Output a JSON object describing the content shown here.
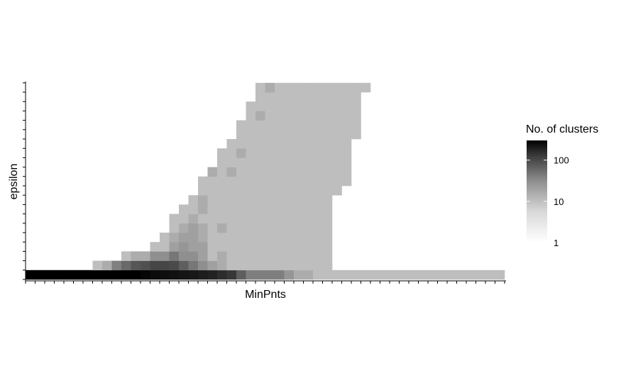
{
  "chart_data": {
    "type": "heatmap",
    "xlabel": "MinPnts",
    "ylabel": "epsilon",
    "x_count": 50,
    "y_count": 21,
    "legend": {
      "title": "No. of clusters",
      "scale": "log10",
      "ticks": [
        1,
        10,
        100
      ],
      "tick_labels": [
        "1",
        "10",
        "100"
      ],
      "range": [
        1,
        300
      ],
      "low_color": "#ffffff",
      "high_color": "#000000"
    },
    "rows": [
      {
        "y": 1,
        "values": [
          300,
          300,
          300,
          300,
          300,
          300,
          300,
          300,
          300,
          300,
          300,
          300,
          250,
          220,
          200,
          180,
          160,
          150,
          130,
          110,
          80,
          60,
          20,
          8,
          8,
          8,
          8,
          4,
          2,
          2,
          1,
          1,
          1,
          1,
          1,
          1,
          1,
          1,
          1,
          1,
          1,
          1,
          1,
          1,
          1,
          1,
          1,
          1,
          1,
          1
        ]
      },
      {
        "y": 2,
        "values": [
          0,
          0,
          0,
          0,
          0,
          0,
          0,
          1,
          2,
          8,
          15,
          25,
          30,
          40,
          40,
          35,
          20,
          10,
          5,
          3,
          2,
          1,
          1,
          1,
          1,
          1,
          1,
          1,
          1,
          1,
          1,
          1,
          0,
          0,
          0,
          0,
          0,
          0,
          0,
          0,
          0,
          0,
          0,
          0,
          0,
          0,
          0,
          0,
          0,
          0
        ]
      },
      {
        "y": 3,
        "values": [
          0,
          0,
          0,
          0,
          0,
          0,
          0,
          0,
          0,
          0,
          1,
          2,
          2,
          5,
          5,
          10,
          5,
          5,
          3,
          1,
          2,
          1,
          1,
          1,
          1,
          1,
          1,
          1,
          1,
          1,
          1,
          1,
          0,
          0,
          0,
          0,
          0,
          0,
          0,
          0,
          0,
          0,
          0,
          0,
          0,
          0,
          0,
          0,
          0,
          0
        ]
      },
      {
        "y": 4,
        "values": [
          0,
          0,
          0,
          0,
          0,
          0,
          0,
          0,
          0,
          0,
          0,
          0,
          0,
          1,
          1,
          3,
          4,
          3,
          3,
          1,
          1,
          1,
          1,
          1,
          1,
          1,
          1,
          1,
          1,
          1,
          1,
          1,
          0,
          0,
          0,
          0,
          0,
          0,
          0,
          0,
          0,
          0,
          0,
          0,
          0,
          0,
          0,
          0,
          0,
          0
        ]
      },
      {
        "y": 5,
        "values": [
          0,
          0,
          0,
          0,
          0,
          0,
          0,
          0,
          0,
          0,
          0,
          0,
          0,
          0,
          1,
          2,
          3,
          3,
          2,
          1,
          1,
          1,
          1,
          1,
          1,
          1,
          1,
          1,
          1,
          1,
          1,
          1,
          0,
          0,
          0,
          0,
          0,
          0,
          0,
          0,
          0,
          0,
          0,
          0,
          0,
          0,
          0,
          0,
          0,
          0
        ]
      },
      {
        "y": 6,
        "values": [
          0,
          0,
          0,
          0,
          0,
          0,
          0,
          0,
          0,
          0,
          0,
          0,
          0,
          0,
          0,
          1,
          2,
          3,
          2,
          1,
          2,
          1,
          1,
          1,
          1,
          1,
          1,
          1,
          1,
          1,
          1,
          1,
          0,
          0,
          0,
          0,
          0,
          0,
          0,
          0,
          0,
          0,
          0,
          0,
          0,
          0,
          0,
          0,
          0,
          0
        ]
      },
      {
        "y": 7,
        "values": [
          0,
          0,
          0,
          0,
          0,
          0,
          0,
          0,
          0,
          0,
          0,
          0,
          0,
          0,
          0,
          1,
          1,
          2,
          1,
          1,
          1,
          1,
          1,
          1,
          1,
          1,
          1,
          1,
          1,
          1,
          1,
          1,
          0,
          0,
          0,
          0,
          0,
          0,
          0,
          0,
          0,
          0,
          0,
          0,
          0,
          0,
          0,
          0,
          0,
          0
        ]
      },
      {
        "y": 8,
        "values": [
          0,
          0,
          0,
          0,
          0,
          0,
          0,
          0,
          0,
          0,
          0,
          0,
          0,
          0,
          0,
          0,
          1,
          1,
          2,
          1,
          1,
          1,
          1,
          1,
          1,
          1,
          1,
          1,
          1,
          1,
          1,
          1,
          0,
          0,
          0,
          0,
          0,
          0,
          0,
          0,
          0,
          0,
          0,
          0,
          0,
          0,
          0,
          0,
          0,
          0
        ]
      },
      {
        "y": 9,
        "values": [
          0,
          0,
          0,
          0,
          0,
          0,
          0,
          0,
          0,
          0,
          0,
          0,
          0,
          0,
          0,
          0,
          0,
          1,
          2,
          1,
          1,
          1,
          1,
          1,
          1,
          1,
          1,
          1,
          1,
          1,
          1,
          1,
          0,
          0,
          0,
          0,
          0,
          0,
          0,
          0,
          0,
          0,
          0,
          0,
          0,
          0,
          0,
          0,
          0,
          0
        ]
      },
      {
        "y": 10,
        "values": [
          0,
          0,
          0,
          0,
          0,
          0,
          0,
          0,
          0,
          0,
          0,
          0,
          0,
          0,
          0,
          0,
          0,
          0,
          1,
          1,
          1,
          1,
          1,
          1,
          1,
          1,
          1,
          1,
          1,
          1,
          1,
          1,
          1,
          0,
          0,
          0,
          0,
          0,
          0,
          0,
          0,
          0,
          0,
          0,
          0,
          0,
          0,
          0,
          0,
          0
        ]
      },
      {
        "y": 11,
        "values": [
          0,
          0,
          0,
          0,
          0,
          0,
          0,
          0,
          0,
          0,
          0,
          0,
          0,
          0,
          0,
          0,
          0,
          0,
          1,
          1,
          1,
          1,
          1,
          1,
          1,
          1,
          1,
          1,
          1,
          1,
          1,
          1,
          1,
          1,
          0,
          0,
          0,
          0,
          0,
          0,
          0,
          0,
          0,
          0,
          0,
          0,
          0,
          0,
          0,
          0
        ]
      },
      {
        "y": 12,
        "values": [
          0,
          0,
          0,
          0,
          0,
          0,
          0,
          0,
          0,
          0,
          0,
          0,
          0,
          0,
          0,
          0,
          0,
          0,
          0,
          2,
          1,
          2,
          1,
          1,
          1,
          1,
          1,
          1,
          1,
          1,
          1,
          1,
          1,
          1,
          0,
          0,
          0,
          0,
          0,
          0,
          0,
          0,
          0,
          0,
          0,
          0,
          0,
          0,
          0,
          0
        ]
      },
      {
        "y": 13,
        "values": [
          0,
          0,
          0,
          0,
          0,
          0,
          0,
          0,
          0,
          0,
          0,
          0,
          0,
          0,
          0,
          0,
          0,
          0,
          0,
          0,
          1,
          1,
          1,
          1,
          1,
          1,
          1,
          1,
          1,
          1,
          1,
          1,
          1,
          1,
          0,
          0,
          0,
          0,
          0,
          0,
          0,
          0,
          0,
          0,
          0,
          0,
          0,
          0,
          0,
          0
        ]
      },
      {
        "y": 14,
        "values": [
          0,
          0,
          0,
          0,
          0,
          0,
          0,
          0,
          0,
          0,
          0,
          0,
          0,
          0,
          0,
          0,
          0,
          0,
          0,
          0,
          1,
          1,
          2,
          1,
          1,
          1,
          1,
          1,
          1,
          1,
          1,
          1,
          1,
          1,
          0,
          0,
          0,
          0,
          0,
          0,
          0,
          0,
          0,
          0,
          0,
          0,
          0,
          0,
          0,
          0
        ]
      },
      {
        "y": 15,
        "values": [
          0,
          0,
          0,
          0,
          0,
          0,
          0,
          0,
          0,
          0,
          0,
          0,
          0,
          0,
          0,
          0,
          0,
          0,
          0,
          0,
          0,
          1,
          1,
          1,
          1,
          1,
          1,
          1,
          1,
          1,
          1,
          1,
          1,
          1,
          0,
          0,
          0,
          0,
          0,
          0,
          0,
          0,
          0,
          0,
          0,
          0,
          0,
          0,
          0,
          0
        ]
      },
      {
        "y": 16,
        "values": [
          0,
          0,
          0,
          0,
          0,
          0,
          0,
          0,
          0,
          0,
          0,
          0,
          0,
          0,
          0,
          0,
          0,
          0,
          0,
          0,
          0,
          0,
          1,
          1,
          1,
          1,
          1,
          1,
          1,
          1,
          1,
          1,
          1,
          1,
          1,
          0,
          0,
          0,
          0,
          0,
          0,
          0,
          0,
          0,
          0,
          0,
          0,
          0,
          0,
          0
        ]
      },
      {
        "y": 17,
        "values": [
          0,
          0,
          0,
          0,
          0,
          0,
          0,
          0,
          0,
          0,
          0,
          0,
          0,
          0,
          0,
          0,
          0,
          0,
          0,
          0,
          0,
          0,
          1,
          1,
          1,
          1,
          1,
          1,
          1,
          1,
          1,
          1,
          1,
          1,
          1,
          0,
          0,
          0,
          0,
          0,
          0,
          0,
          0,
          0,
          0,
          0,
          0,
          0,
          0,
          0
        ]
      },
      {
        "y": 18,
        "values": [
          0,
          0,
          0,
          0,
          0,
          0,
          0,
          0,
          0,
          0,
          0,
          0,
          0,
          0,
          0,
          0,
          0,
          0,
          0,
          0,
          0,
          0,
          0,
          1,
          2,
          1,
          1,
          1,
          1,
          1,
          1,
          1,
          1,
          1,
          1,
          0,
          0,
          0,
          0,
          0,
          0,
          0,
          0,
          0,
          0,
          0,
          0,
          0,
          0,
          0
        ]
      },
      {
        "y": 19,
        "values": [
          0,
          0,
          0,
          0,
          0,
          0,
          0,
          0,
          0,
          0,
          0,
          0,
          0,
          0,
          0,
          0,
          0,
          0,
          0,
          0,
          0,
          0,
          0,
          1,
          1,
          1,
          1,
          1,
          1,
          1,
          1,
          1,
          1,
          1,
          1,
          0,
          0,
          0,
          0,
          0,
          0,
          0,
          0,
          0,
          0,
          0,
          0,
          0,
          0,
          0
        ]
      },
      {
        "y": 20,
        "values": [
          0,
          0,
          0,
          0,
          0,
          0,
          0,
          0,
          0,
          0,
          0,
          0,
          0,
          0,
          0,
          0,
          0,
          0,
          0,
          0,
          0,
          0,
          0,
          0,
          1,
          1,
          1,
          1,
          1,
          1,
          1,
          1,
          1,
          1,
          1,
          0,
          0,
          0,
          0,
          0,
          0,
          0,
          0,
          0,
          0,
          0,
          0,
          0,
          0,
          0
        ]
      },
      {
        "y": 21,
        "values": [
          0,
          0,
          0,
          0,
          0,
          0,
          0,
          0,
          0,
          0,
          0,
          0,
          0,
          0,
          0,
          0,
          0,
          0,
          0,
          0,
          0,
          0,
          0,
          0,
          1,
          2,
          1,
          1,
          1,
          1,
          1,
          1,
          1,
          1,
          1,
          1,
          0,
          0,
          0,
          0,
          0,
          0,
          0,
          0,
          0,
          0,
          0,
          0,
          0,
          0
        ]
      }
    ]
  }
}
